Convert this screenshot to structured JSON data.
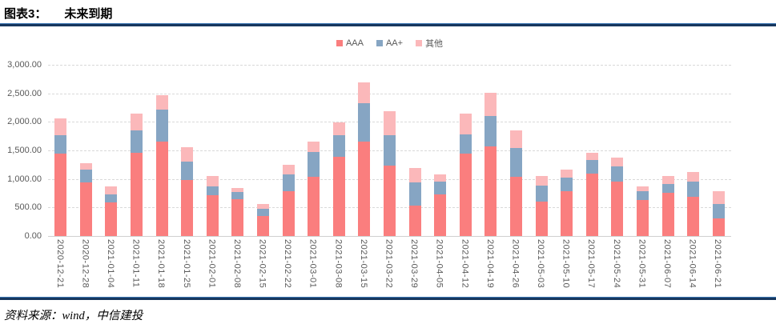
{
  "header": {
    "chart_no": "图表3：",
    "title": "未来到期"
  },
  "footer": {
    "source": "资料来源：wind，中信建投"
  },
  "colors": {
    "rule": "#17375e",
    "axis_text": "#595959",
    "grid": "#d9d9d9"
  },
  "chart_data": {
    "type": "bar",
    "stacked": true,
    "title": "未来到期",
    "xlabel": "",
    "ylabel": "",
    "ylim": [
      0,
      3000
    ],
    "ytick_step": 500,
    "ytick_labels": [
      "0.00",
      "500.00",
      "1,000.00",
      "1,500.00",
      "2,000.00",
      "2,500.00",
      "3,000.00"
    ],
    "grid": true,
    "legend_position": "top-center",
    "categories": [
      "2020-12-21",
      "2020-12-28",
      "2021-01-04",
      "2021-01-11",
      "2021-01-18",
      "2021-01-25",
      "2021-02-01",
      "2021-02-08",
      "2021-02-15",
      "2021-02-22",
      "2021-03-01",
      "2021-03-08",
      "2021-03-15",
      "2021-03-22",
      "2021-03-29",
      "2021-04-05",
      "2021-04-12",
      "2021-04-19",
      "2021-04-26",
      "2021-05-03",
      "2021-05-10",
      "2021-05-17",
      "2021-05-24",
      "2021-05-31",
      "2021-06-07",
      "2021-06-14",
      "2021-06-21"
    ],
    "series": [
      {
        "name": "AAA",
        "color": "#fa7e7e",
        "values": [
          1450,
          935,
          595,
          1460,
          1655,
          975,
          710,
          640,
          345,
          790,
          1040,
          1390,
          1655,
          1240,
          530,
          725,
          1440,
          1565,
          1040,
          600,
          785,
          1100,
          960,
          630,
          760,
          690,
          305
        ]
      },
      {
        "name": "AA+",
        "color": "#86a5c3",
        "values": [
          320,
          230,
          140,
          390,
          565,
          335,
          155,
          130,
          130,
          285,
          430,
          370,
          670,
          525,
          405,
          225,
          345,
          535,
          500,
          290,
          245,
          235,
          255,
          155,
          145,
          260,
          255
        ]
      },
      {
        "name": "其他",
        "color": "#fbb8ba",
        "values": [
          290,
          110,
          140,
          295,
          250,
          245,
          180,
          70,
          80,
          175,
          190,
          225,
          365,
          425,
          255,
          125,
          365,
          405,
          305,
          155,
          130,
          120,
          165,
          80,
          150,
          170,
          225
        ]
      }
    ]
  }
}
